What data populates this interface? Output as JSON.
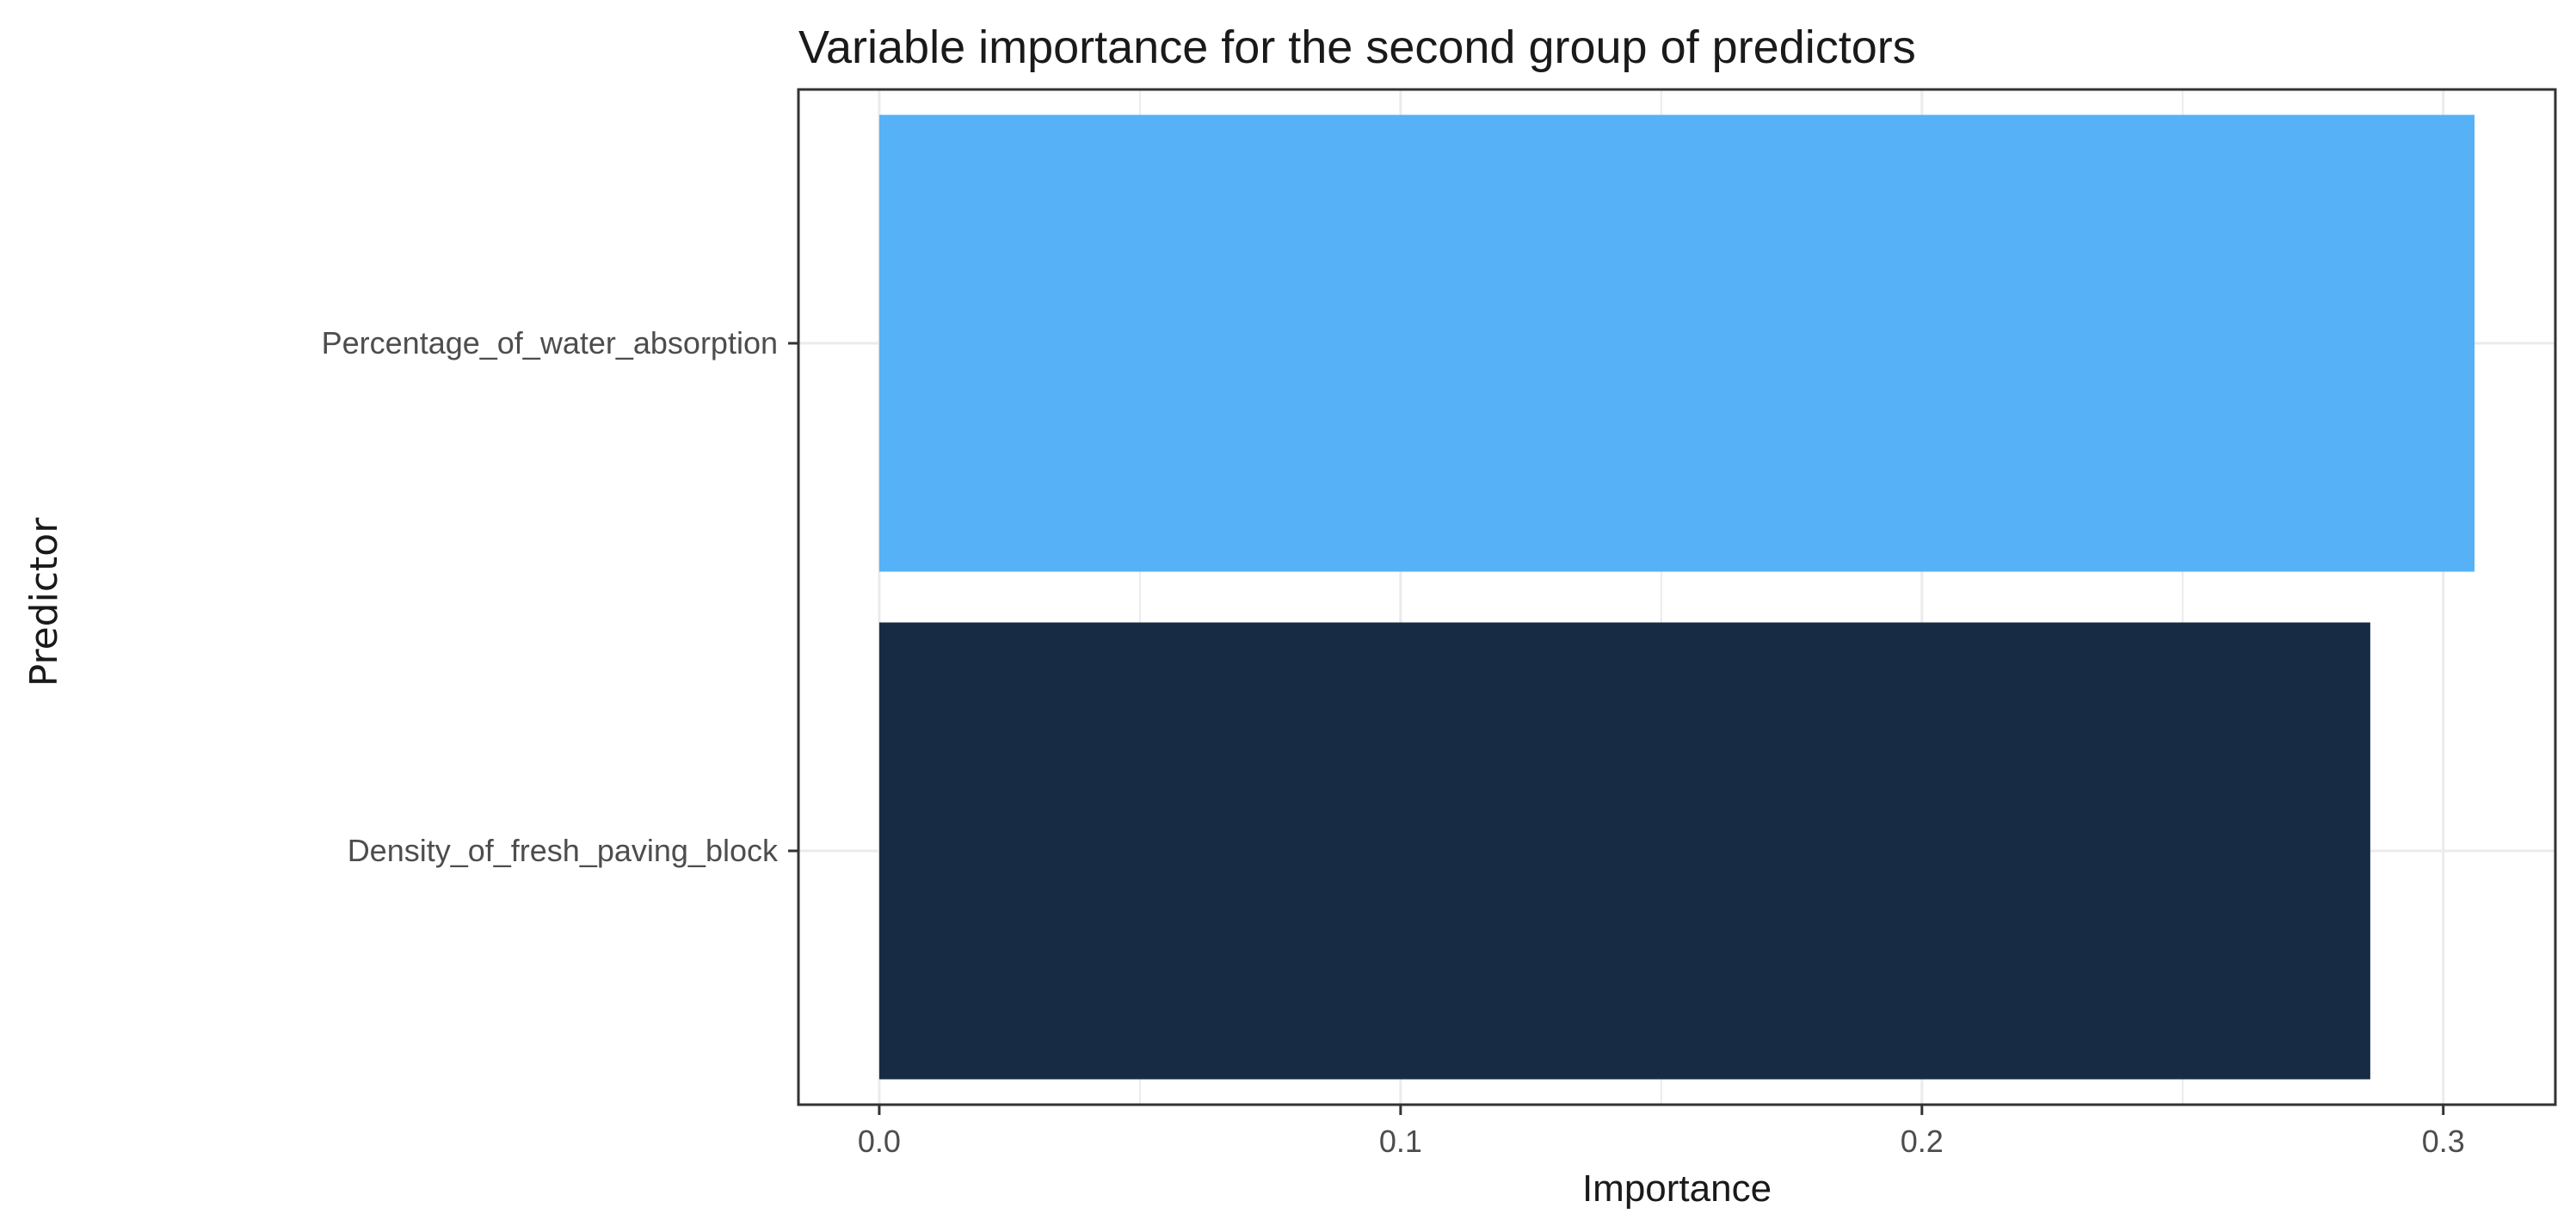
{
  "chart_data": {
    "type": "bar",
    "orientation": "horizontal",
    "title": "Variable importance for the second group of predictors",
    "xlabel": "Importance",
    "ylabel": "Predictor",
    "categories": [
      "Percentage_of_water_absorption",
      "Density_of_fresh_paving_block"
    ],
    "values": [
      0.306,
      0.286
    ],
    "bar_colors": [
      "#56b1f7",
      "#172c44"
    ],
    "xlim": [
      -0.0155,
      0.3215
    ],
    "xticks": [
      0.0,
      0.1,
      0.2,
      0.3
    ],
    "xtick_labels": [
      "0.0",
      "0.1",
      "0.2",
      "0.3"
    ],
    "grid": true,
    "legend": "none",
    "panel_border_color": "#333333",
    "grid_color": "#ebebeb"
  }
}
